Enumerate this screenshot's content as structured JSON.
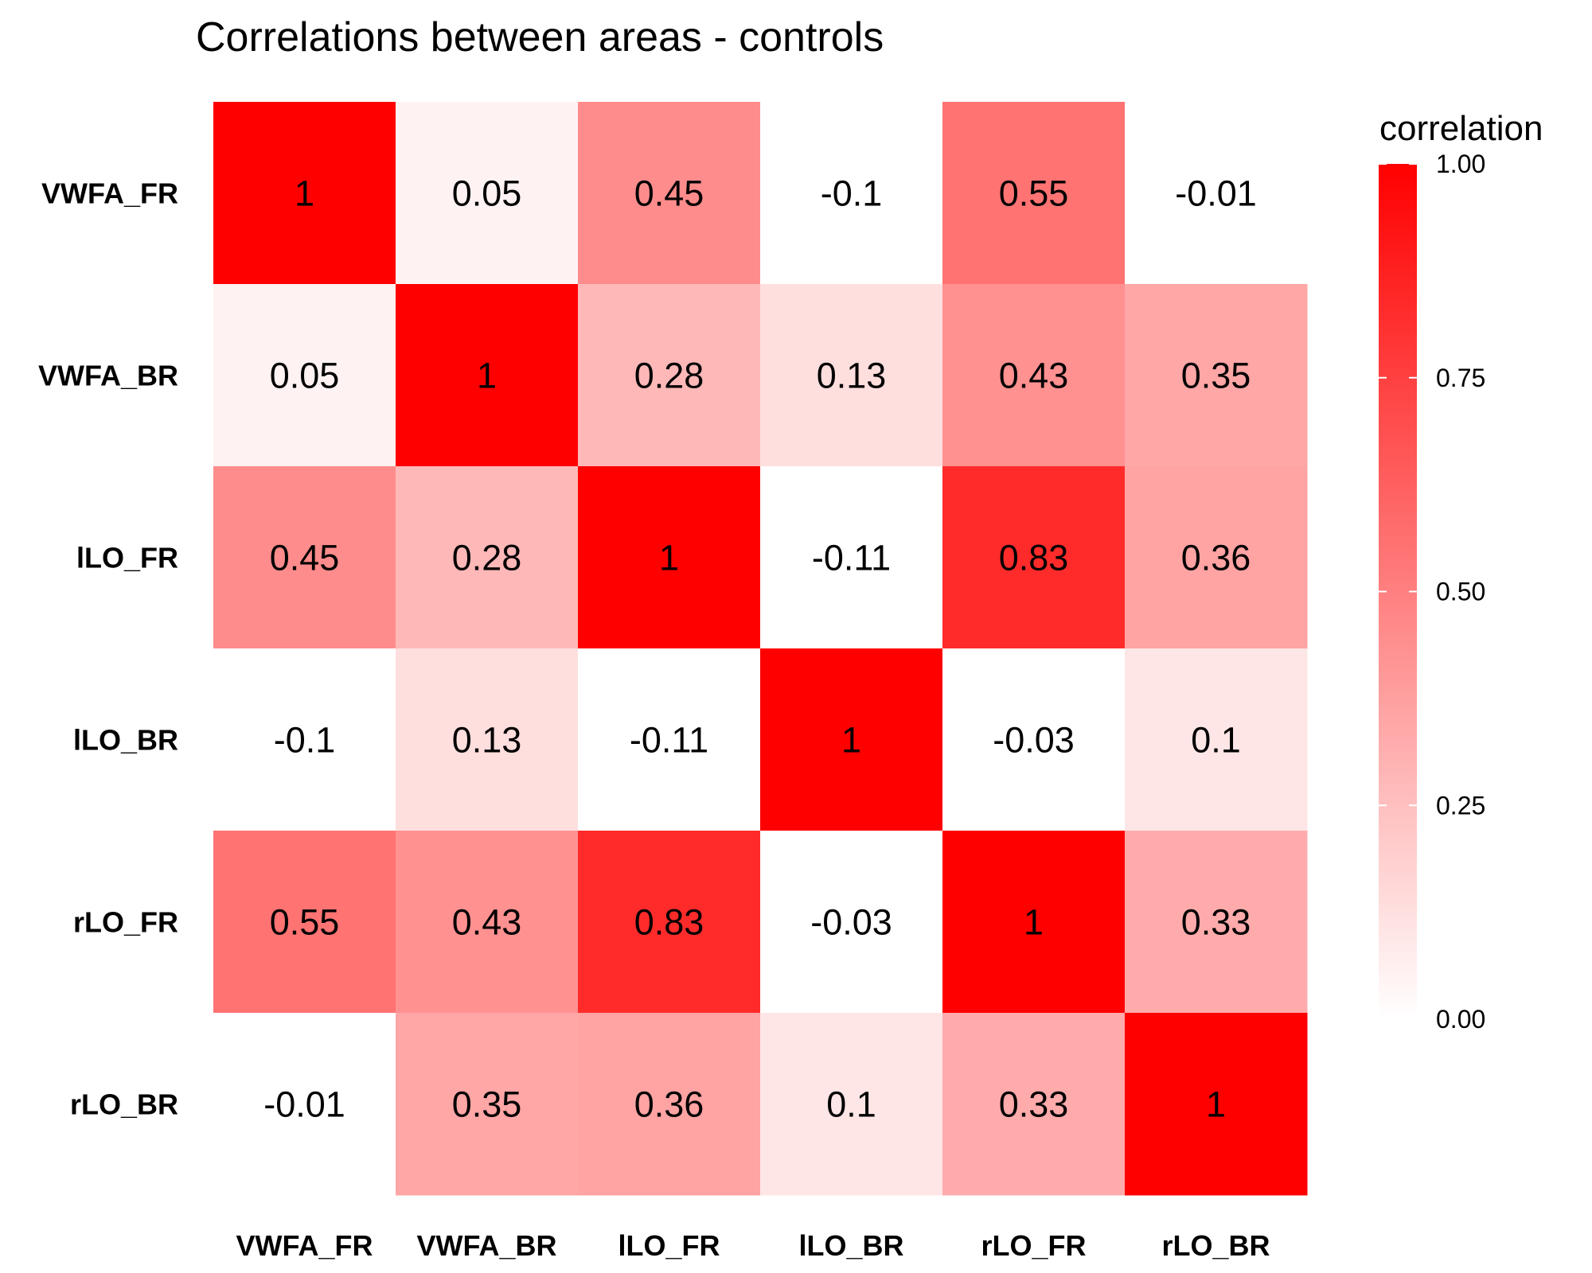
{
  "chart_data": {
    "type": "heatmap",
    "title": "Correlations between areas - controls",
    "rows": [
      "VWFA_FR",
      "VWFA_BR",
      "lLO_FR",
      "lLO_BR",
      "rLO_FR",
      "rLO_BR"
    ],
    "columns": [
      "VWFA_FR",
      "VWFA_BR",
      "lLO_FR",
      "lLO_BR",
      "rLO_FR",
      "rLO_BR"
    ],
    "values": [
      [
        1,
        0.05,
        0.45,
        -0.1,
        0.55,
        -0.01
      ],
      [
        0.05,
        1,
        0.28,
        0.13,
        0.43,
        0.35
      ],
      [
        0.45,
        0.28,
        1,
        -0.11,
        0.83,
        0.36
      ],
      [
        -0.1,
        0.13,
        -0.11,
        1,
        -0.03,
        0.1
      ],
      [
        0.55,
        0.43,
        0.83,
        -0.03,
        1,
        0.33
      ],
      [
        -0.01,
        0.35,
        0.36,
        0.1,
        0.33,
        1
      ]
    ],
    "cell_labels": [
      [
        "1",
        "0.05",
        "0.45",
        "-0.1",
        "0.55",
        "-0.01"
      ],
      [
        "0.05",
        "1",
        "0.28",
        "0.13",
        "0.43",
        "0.35"
      ],
      [
        "0.45",
        "0.28",
        "1",
        "-0.11",
        "0.83",
        "0.36"
      ],
      [
        "-0.1",
        "0.13",
        "-0.11",
        "1",
        "-0.03",
        "0.1"
      ],
      [
        "0.55",
        "0.43",
        "0.83",
        "-0.03",
        "1",
        "0.33"
      ],
      [
        "-0.01",
        "0.35",
        "0.36",
        "0.1",
        "0.33",
        "1"
      ]
    ],
    "legend": {
      "title": "correlation",
      "ticks": [
        1.0,
        0.75,
        0.5,
        0.25,
        0.0
      ],
      "tick_labels": [
        "1.00",
        "0.75",
        "0.50",
        "0.25",
        "0.00"
      ],
      "range": [
        -0.2,
        1.0
      ],
      "placement": "right"
    },
    "colors": {
      "low": "#ffffff",
      "high": "#ff0000"
    }
  }
}
